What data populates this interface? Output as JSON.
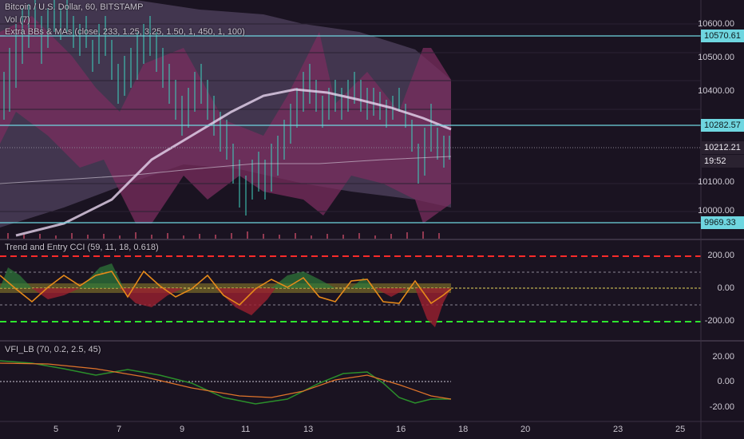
{
  "header": {
    "symbol_line": "Bitcoin / U.S. Dollar, 60, BITSTAMP",
    "vol_line": "Vol (7)",
    "bb_line": "Extra BBs & MAs (close, 233, 1.25, 3.25, 1.50, 1, 450, 1, 100)"
  },
  "main_axis": {
    "ticks": [
      "10600.00",
      "10500.00",
      "10400.00",
      "10100.00",
      "10000.00"
    ],
    "line_labels": [
      "10570.61",
      "10282.57",
      "9969.33"
    ],
    "price_label": "10212.21",
    "countdown": "19:52"
  },
  "cci_panel": {
    "title": "Trend and Entry CCI (59, 11, 18, 0.618)",
    "ticks": [
      "200.00",
      "0.00",
      "-200.00"
    ]
  },
  "vfi_panel": {
    "title": "VFI_LB (70, 0.2, 2.5, 45)",
    "ticks": [
      "20.00",
      "0.00",
      "-20.00"
    ]
  },
  "x_axis": {
    "labels": [
      "5",
      "7",
      "9",
      "11",
      "13",
      "16",
      "18",
      "20",
      "23",
      "25"
    ]
  },
  "colors": {
    "background": "#1a1321",
    "hline": "#6fd6e0",
    "cci_red": "#ff2a2a",
    "cci_green": "#2ee62e",
    "price_line": "#c8c2cf"
  }
}
